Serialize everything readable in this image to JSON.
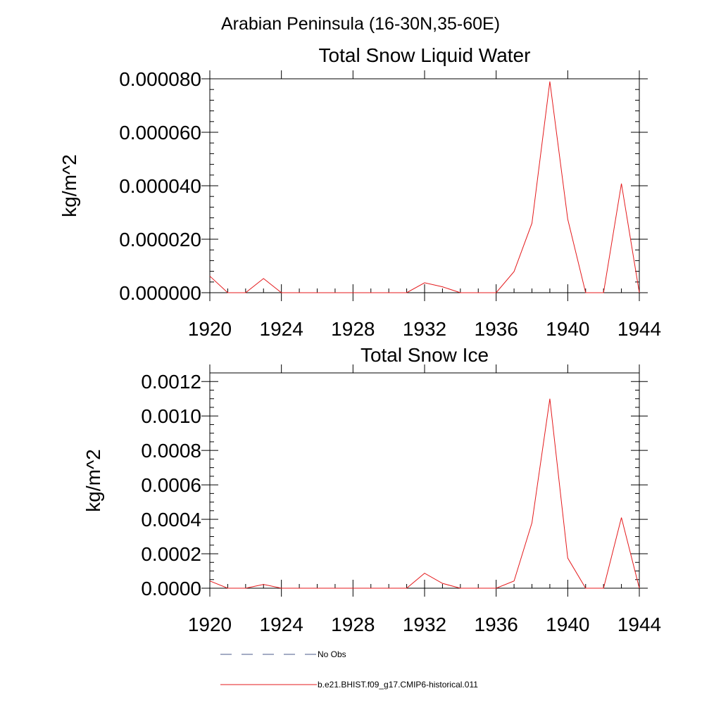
{
  "figure": {
    "title": "Arabian Peninsula (16-30N,35-60E)"
  },
  "legend": {
    "entries": [
      {
        "label": "No Obs",
        "color": "#4a5a8a",
        "style": "dashed"
      },
      {
        "label": "b.e21.BHIST.f09_g17.CMIP6-historical.011",
        "color": "#e41a1c",
        "style": "solid"
      }
    ]
  },
  "chart_data": [
    {
      "type": "line",
      "title": "Total Snow Liquid Water",
      "xlabel": "",
      "ylabel": "kg/m^2",
      "xlim": [
        1920,
        1944
      ],
      "ylim": [
        0,
        8e-05
      ],
      "x_ticks": [
        1920,
        1924,
        1928,
        1932,
        1936,
        1940,
        1944
      ],
      "x_tick_labels": [
        "1920",
        "1924",
        "1928",
        "1932",
        "1936",
        "1940",
        "1944"
      ],
      "y_ticks": [
        0,
        2e-05,
        4e-05,
        6e-05,
        8e-05
      ],
      "y_tick_labels": [
        "0.000000",
        "0.000020",
        "0.000040",
        "0.000060",
        "0.000080"
      ],
      "series": [
        {
          "color": "#e41a1c",
          "x": [
            1920,
            1921,
            1922,
            1923,
            1924,
            1925,
            1926,
            1927,
            1928,
            1929,
            1930,
            1931,
            1932,
            1933,
            1934,
            1935,
            1936,
            1937,
            1938,
            1939,
            1940,
            1941,
            1942,
            1943,
            1944
          ],
          "values": [
            6.2e-06,
            0,
            0,
            5.3e-06,
            0,
            0,
            0,
            0,
            0,
            0,
            0,
            0,
            3.7e-06,
            2.2e-06,
            0,
            0,
            0,
            7.9e-06,
            2.6e-05,
            7.9e-05,
            2.75e-05,
            0,
            0,
            4.08e-05,
            0
          ]
        }
      ]
    },
    {
      "type": "line",
      "title": "Total Snow Ice",
      "xlabel": "",
      "ylabel": "kg/m^2",
      "xlim": [
        1920,
        1944
      ],
      "ylim": [
        0,
        0.00125
      ],
      "x_ticks": [
        1920,
        1924,
        1928,
        1932,
        1936,
        1940,
        1944
      ],
      "x_tick_labels": [
        "1920",
        "1924",
        "1928",
        "1932",
        "1936",
        "1940",
        "1944"
      ],
      "y_ticks": [
        0,
        0.0002,
        0.0004,
        0.0006,
        0.0008,
        0.001,
        0.0012
      ],
      "y_tick_labels": [
        "0.0000",
        "0.0002",
        "0.0004",
        "0.0006",
        "0.0008",
        "0.0010",
        "0.0012"
      ],
      "series": [
        {
          "color": "#e41a1c",
          "x": [
            1920,
            1921,
            1922,
            1923,
            1924,
            1925,
            1926,
            1927,
            1928,
            1929,
            1930,
            1931,
            1932,
            1933,
            1934,
            1935,
            1936,
            1937,
            1938,
            1939,
            1940,
            1941,
            1942,
            1943,
            1944
          ],
          "values": [
            4.2e-05,
            0,
            0,
            2.2e-05,
            0,
            0,
            0,
            0,
            0,
            0,
            0,
            0,
            8.7e-05,
            2.8e-05,
            0,
            0,
            0,
            4.2e-05,
            0.00038,
            0.0011,
            0.000175,
            0,
            0,
            0.00041,
            0
          ]
        }
      ]
    }
  ]
}
